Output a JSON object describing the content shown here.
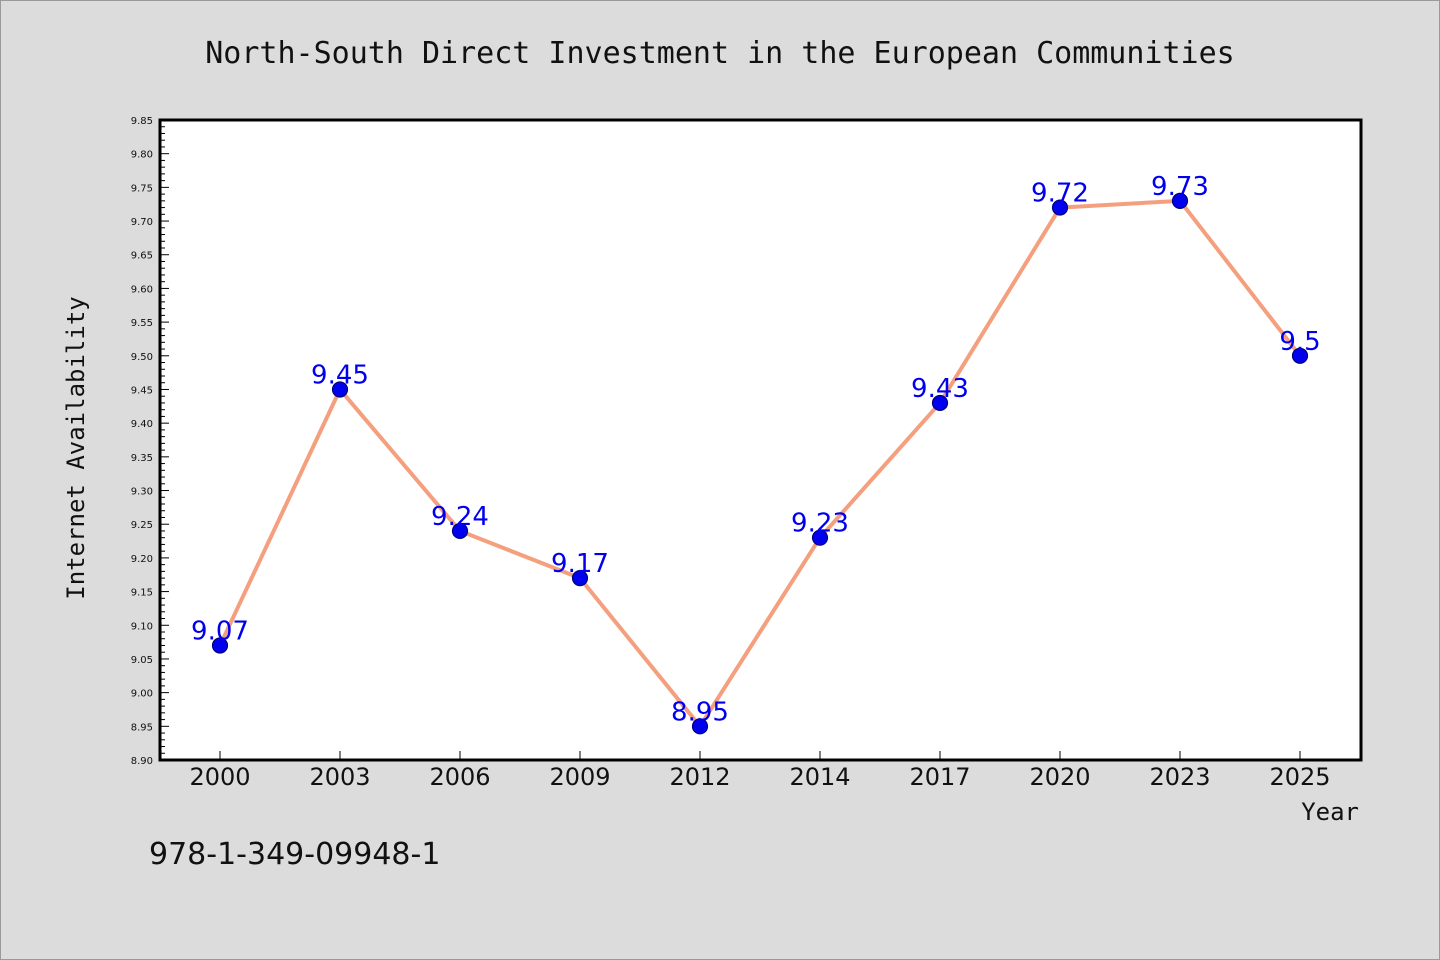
{
  "chart_data": {
    "type": "line",
    "title": "North-South Direct Investment in the European Communities",
    "xlabel": "Year",
    "ylabel": "Internet Availability",
    "categories": [
      "2000",
      "2003",
      "2006",
      "2009",
      "2012",
      "2014",
      "2017",
      "2020",
      "2023",
      "2025"
    ],
    "series": [
      {
        "values": [
          9.07,
          9.45,
          9.24,
          9.17,
          8.95,
          9.23,
          9.43,
          9.72,
          9.73,
          9.5
        ],
        "labels": [
          "9.07",
          "9.45",
          "9.24",
          "9.17",
          "8.95",
          "9.23",
          "9.43",
          "9.72",
          "9.73",
          "9.5"
        ]
      }
    ],
    "ylim": [
      8.9,
      9.85
    ],
    "yticks": [
      "8.90",
      "8.95",
      "9.00",
      "9.05",
      "9.10",
      "9.15",
      "9.20",
      "9.25",
      "9.30",
      "9.35",
      "9.40",
      "9.45",
      "9.50",
      "9.55",
      "9.60",
      "9.65",
      "9.70",
      "9.75",
      "9.80",
      "9.85"
    ],
    "grid": false,
    "legend": "none",
    "colors": {
      "line": "#f4a07e",
      "marker_fill": "#0000ee",
      "marker_edge": "#00007a",
      "data_label": "#0000ee",
      "background": "#dcdcdc",
      "plot_background": "#ffffff"
    }
  },
  "footer": {
    "isbn": "978-1-349-09948-1"
  }
}
